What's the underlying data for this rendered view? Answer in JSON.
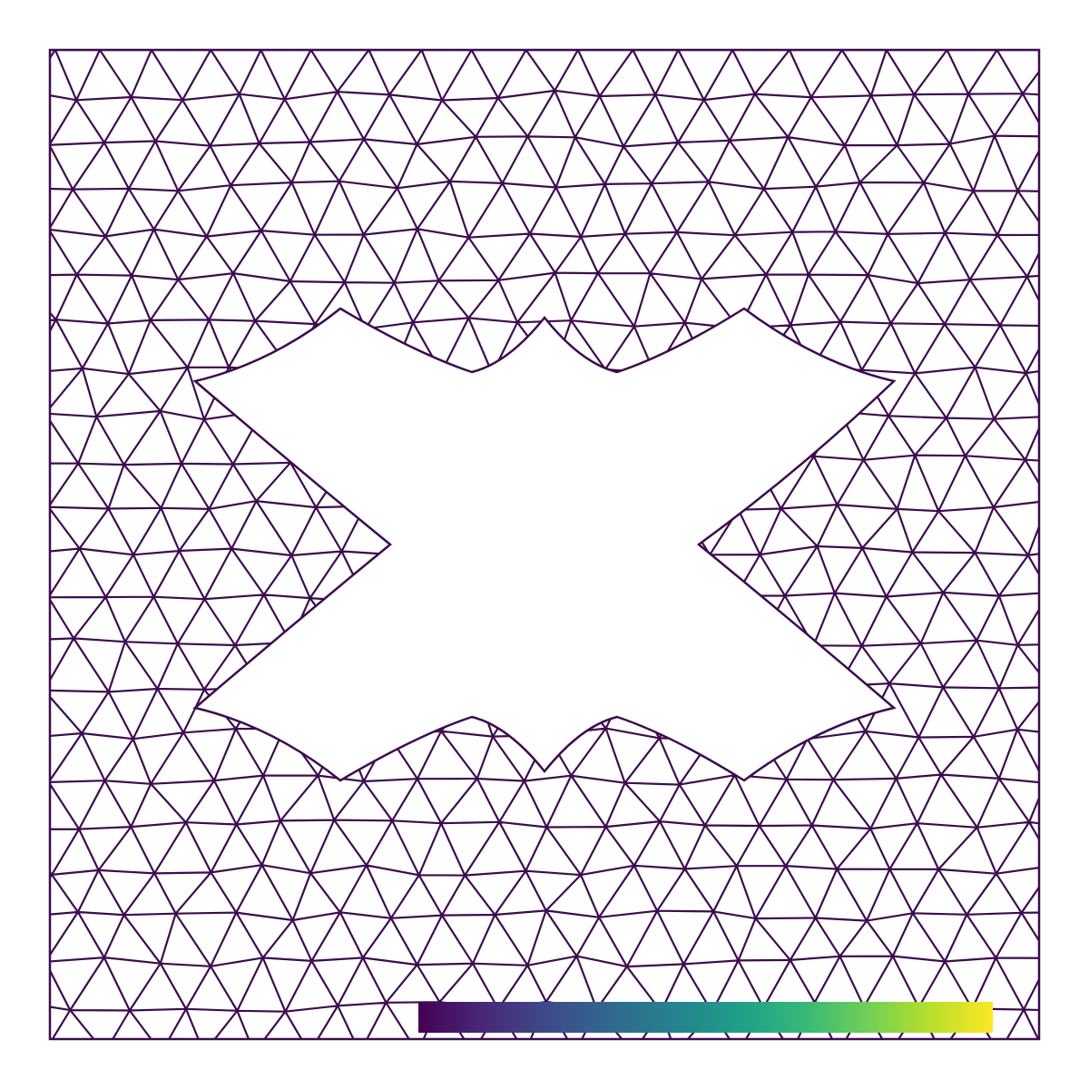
{
  "mesh": {
    "line_color": "#3d0b4f"
  },
  "colorbar": {
    "colors": [
      "#440154",
      "#482878",
      "#3e4a89",
      "#31688e",
      "#26828e",
      "#1f9e89",
      "#35b779",
      "#6ece58",
      "#b5de2b",
      "#fde725"
    ]
  }
}
